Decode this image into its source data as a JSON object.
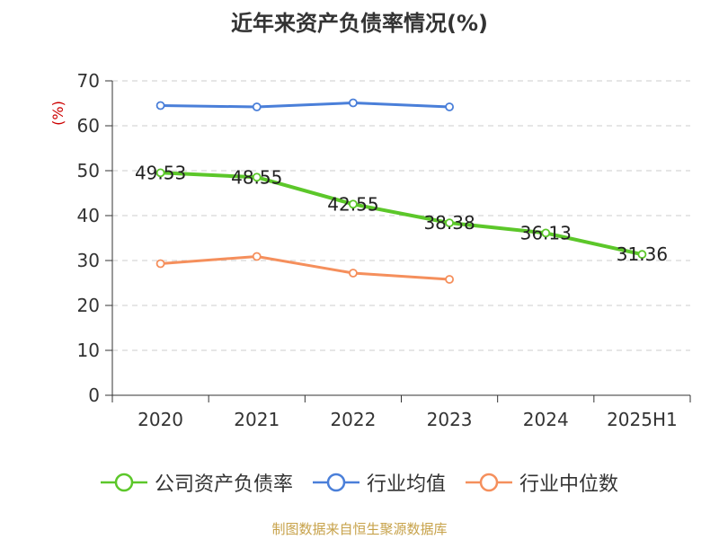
{
  "title": "近年来资产负债率情况(%)",
  "source": "制图数据来自恒生聚源数据库",
  "chart_data": {
    "type": "line",
    "categories": [
      "2020",
      "2021",
      "2022",
      "2023",
      "2024",
      "2025H1"
    ],
    "ylabel": "(%)",
    "ylim": [
      0,
      70
    ],
    "yticks": [
      "0",
      "10",
      "20",
      "30",
      "40",
      "50",
      "60",
      "70"
    ],
    "grid": true,
    "legend_position": "bottom",
    "series": [
      {
        "name": "公司资产负债率",
        "color": "#5cc72a",
        "values": [
          49.53,
          48.55,
          42.55,
          38.38,
          36.13,
          31.36
        ],
        "labels": [
          "49.53",
          "48.55",
          "42.55",
          "38.38",
          "36.13",
          "31.36"
        ]
      },
      {
        "name": "行业均值",
        "color": "#4a7fd9",
        "values": [
          64.5,
          64.2,
          65.1,
          64.2,
          null,
          null
        ]
      },
      {
        "name": "行业中位数",
        "color": "#f58f5c",
        "values": [
          29.3,
          30.9,
          27.2,
          25.8,
          null,
          null
        ]
      }
    ]
  }
}
